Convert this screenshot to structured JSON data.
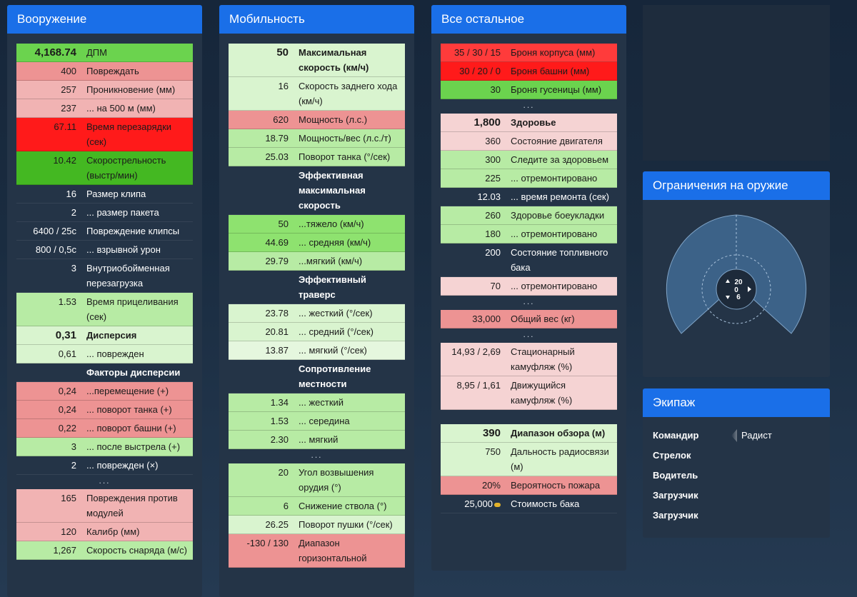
{
  "firepower": {
    "title": "Вооружение",
    "rows": [
      {
        "val": "4,168.74",
        "lbl": "ДПМ",
        "c": "c-g1",
        "cls": "big"
      },
      {
        "val": "400",
        "lbl": "Повреждать",
        "c": "c-r2"
      },
      {
        "val": "257",
        "lbl": "Проникновение (мм)",
        "c": "c-r3"
      },
      {
        "val": "237",
        "lbl": "... на 500 м (мм)",
        "c": "c-r3"
      },
      {
        "val": "67.11",
        "lbl": "Время перезарядки (сек)",
        "c": "c-r0"
      },
      {
        "val": "10.42",
        "lbl": "Скорострельность (выстр/мин)",
        "c": "c-gs"
      },
      {
        "val": "16",
        "lbl": "Размер клипа",
        "c": "plain"
      },
      {
        "val": "2",
        "lbl": "... размер пакета",
        "c": "plain"
      },
      {
        "val": "6400 / 25с",
        "lbl": "Повреждение клипсы",
        "c": "plain"
      },
      {
        "val": "800 / 0,5с",
        "lbl": "... взрывной урон",
        "c": "plain"
      },
      {
        "val": "3",
        "lbl": "Внутриобойменная перезагрузка",
        "c": "plain"
      },
      {
        "val": "1.53",
        "lbl": "Время прицеливания (сек)",
        "c": "c-g3"
      },
      {
        "val": "0,31",
        "lbl": "Дисперсия",
        "c": "c-g4",
        "cls": "big bold"
      },
      {
        "val": "0,61",
        "lbl": "... поврежден",
        "c": "c-g4"
      },
      {
        "val": "",
        "lbl": "Факторы дисперсии",
        "c": "plain",
        "cls": "header-row"
      },
      {
        "val": "0,24",
        "lbl": "...перемещение (+)",
        "c": "c-r2"
      },
      {
        "val": "0,24",
        "lbl": "... поворот танка (+)",
        "c": "c-r2"
      },
      {
        "val": "0,22",
        "lbl": "... поворот башни (+)",
        "c": "c-r2"
      },
      {
        "val": "3",
        "lbl": "... после выстрела (+)",
        "c": "c-g3"
      },
      {
        "val": "2",
        "lbl": "... поврежден (×)",
        "c": "plain"
      },
      {
        "dots": "..."
      },
      {
        "val": "165",
        "lbl": "Повреждения против модулей",
        "c": "c-r3"
      },
      {
        "val": "120",
        "lbl": "Калибр (мм)",
        "c": "c-r3"
      },
      {
        "val": "1,267",
        "lbl": "Скорость снаряда (м/с)",
        "c": "c-g3"
      }
    ]
  },
  "mobility": {
    "title": "Мобильность",
    "rows": [
      {
        "val": "50",
        "lbl": "Максимальная скорость (км/ч)",
        "c": "c-g4",
        "cls": "big bold"
      },
      {
        "val": "16",
        "lbl": "Скорость заднего хода (км/ч)",
        "c": "c-g4"
      },
      {
        "val": "620",
        "lbl": "Мощность (л.с.)",
        "c": "c-r2"
      },
      {
        "val": "18.79",
        "lbl": "Мощность/вес (л.с./т)",
        "c": "c-g3"
      },
      {
        "val": "25.03",
        "lbl": "Поворот танка (°/сек)",
        "c": "c-g3"
      },
      {
        "val": "",
        "lbl": "Эффективная максимальная скорость",
        "c": "plain",
        "cls": "header-row"
      },
      {
        "val": "50",
        "lbl": "...тяжело (км/ч)",
        "c": "c-g2"
      },
      {
        "val": "44.69",
        "lbl": "... средняя (км/ч)",
        "c": "c-g2"
      },
      {
        "val": "29.79",
        "lbl": "...мягкий (км/ч)",
        "c": "c-g3"
      },
      {
        "val": "",
        "lbl": "Эффективный траверс",
        "c": "plain",
        "cls": "header-row"
      },
      {
        "val": "23.78",
        "lbl": "... жесткий (°/сек)",
        "c": "c-g4"
      },
      {
        "val": "20.81",
        "lbl": "... средний (°/сек)",
        "c": "c-g4"
      },
      {
        "val": "13.87",
        "lbl": "... мягкий (°/сек)",
        "c": "c-g5"
      },
      {
        "val": "",
        "lbl": "Сопротивление местности",
        "c": "plain",
        "cls": "header-row"
      },
      {
        "val": "1.34",
        "lbl": "... жесткий",
        "c": "c-g3"
      },
      {
        "val": "1.53",
        "lbl": "... середина",
        "c": "c-g3"
      },
      {
        "val": "2.30",
        "lbl": "... мягкий",
        "c": "c-g3"
      },
      {
        "dots": "..."
      },
      {
        "val": "20",
        "lbl": "Угол возвышения орудия (°)",
        "c": "c-g3"
      },
      {
        "val": "6",
        "lbl": "Снижение ствола (°)",
        "c": "c-g3"
      },
      {
        "val": "26.25",
        "lbl": "Поворот пушки (°/сек)",
        "c": "c-g4"
      },
      {
        "val": "-130 / 130",
        "lbl": "Диапазон горизонтальной",
        "c": "c-r2"
      }
    ]
  },
  "other": {
    "title": "Все остальное",
    "rows": [
      {
        "val": "35 / 30 / 15",
        "lbl": "Броня корпуса (мм)",
        "c": "c-r1"
      },
      {
        "val": "30 / 20 / 0",
        "lbl": "Броня башни (мм)",
        "c": "c-r0"
      },
      {
        "val": "30",
        "lbl": "Броня гусеницы (мм)",
        "c": "c-g1"
      },
      {
        "dots": "..."
      },
      {
        "val": "1,800",
        "lbl": "Здоровье",
        "c": "c-r4",
        "cls": "big bold"
      },
      {
        "val": "360",
        "lbl": "Состояние двигателя",
        "c": "c-r4"
      },
      {
        "val": "300",
        "lbl": "Следите за здоровьем",
        "c": "c-g3"
      },
      {
        "val": "225",
        "lbl": "... отремонтировано",
        "c": "c-g3"
      },
      {
        "val": "12.03",
        "lbl": "... время ремонта (сек)",
        "c": "plain"
      },
      {
        "val": "260",
        "lbl": "Здоровье боеукладки",
        "c": "c-g3"
      },
      {
        "val": "180",
        "lbl": "... отремонтировано",
        "c": "c-g3"
      },
      {
        "val": "200",
        "lbl": "Состояние топливного бака",
        "c": "plain"
      },
      {
        "val": "70",
        "lbl": "... отремонтировано",
        "c": "c-r4"
      },
      {
        "dots": "..."
      },
      {
        "val": "33,000",
        "lbl": "Общий вес (кг)",
        "c": "c-r2"
      },
      {
        "dots": "..."
      },
      {
        "val": "14,93 / 2,69",
        "lbl": "Стационарный камуфляж (%)",
        "c": "c-r4"
      },
      {
        "val": "8,95 / 1,61",
        "lbl": "Движущийся камуфляж (%)",
        "c": "c-r4"
      },
      {
        "spacer": true
      },
      {
        "val": "390",
        "lbl": "Диапазон обзора (м)",
        "c": "c-g4",
        "cls": "big bold"
      },
      {
        "val": "750",
        "lbl": "Дальность радиосвязи (м)",
        "c": "c-g4"
      },
      {
        "val": "20%",
        "lbl": "Вероятность пожара",
        "c": "c-r2"
      },
      {
        "val": "25,000",
        "lbl": "Стоимость бака",
        "c": "plain",
        "gold": true
      }
    ]
  },
  "gun_limits": {
    "title": "Ограничения на оружие",
    "elevation": "20",
    "zero": "0",
    "depression": "6"
  },
  "crew": {
    "title": "Экипаж",
    "members": [
      {
        "role": "Командир",
        "extra": "Радист"
      },
      {
        "role": "Стрелок",
        "extra": ""
      },
      {
        "role": "Водитель",
        "extra": ""
      },
      {
        "role": "Загрузчик",
        "extra": ""
      },
      {
        "role": "Загрузчик",
        "extra": ""
      }
    ]
  }
}
